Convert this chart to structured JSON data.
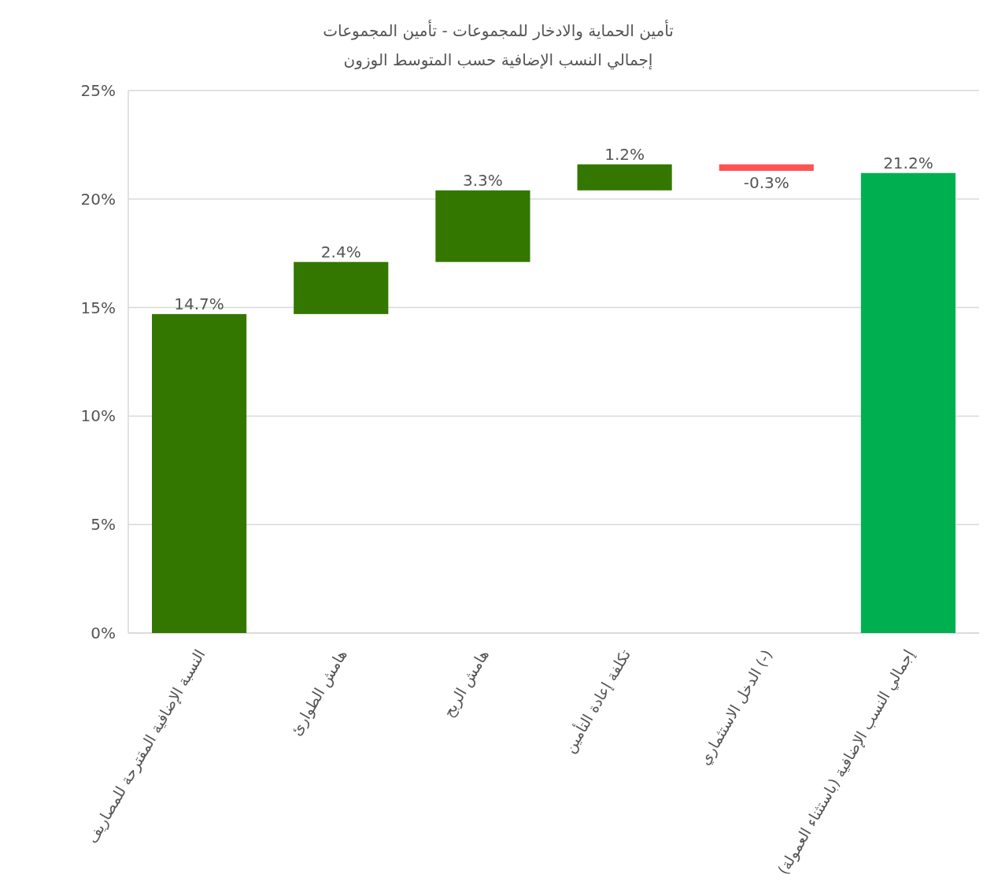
{
  "chart_data": {
    "type": "bar",
    "title": "تأمين الحماية والادخار للمجموعات - تأمين المجموعات",
    "subtitle": "إجمالي النسب الإضافية حسب المتوسط الوزون",
    "categories": [
      "النسبة الإضافية المقترحة للمصاريف",
      "هامش الطوارئ",
      "هامش الربح",
      "تكلفة إعادة التأمين",
      "(-) الدخل الاستثماري",
      "إجمالي النسب الإضافية (باستثناء العمولة)"
    ],
    "values": [
      14.7,
      2.4,
      3.3,
      1.2,
      -0.3,
      21.2
    ],
    "base": [
      0,
      14.7,
      17.1,
      20.4,
      21.6,
      0
    ],
    "colors": [
      "#337700",
      "#337700",
      "#337700",
      "#337700",
      "#ff5252",
      "#00b050"
    ],
    "value_labels": [
      "14.7%",
      "2.4%",
      "3.3%",
      "1.2%",
      "-0.3%",
      "21.2%"
    ],
    "ylim": [
      0,
      25
    ],
    "yticks": [
      {
        "value": 0,
        "label": "0%"
      },
      {
        "value": 5,
        "label": "5%"
      },
      {
        "value": 10,
        "label": "10%"
      },
      {
        "value": 15,
        "label": "15%"
      },
      {
        "value": 20,
        "label": "20%"
      },
      {
        "value": 25,
        "label": "25%"
      }
    ],
    "grid": "y"
  }
}
